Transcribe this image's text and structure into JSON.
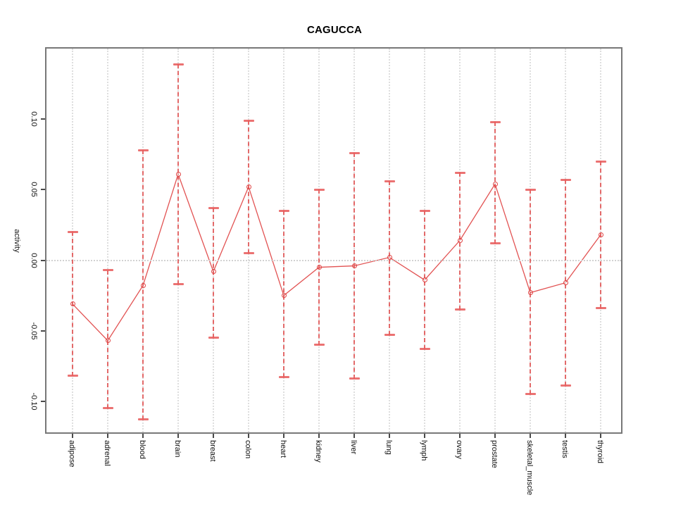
{
  "title": "CAGUCCA",
  "chart_data": {
    "type": "line",
    "title": "CAGUCCA",
    "xlabel": "",
    "ylabel": "activity",
    "categories": [
      "adipose",
      "adrenal",
      "blood",
      "brain",
      "breast",
      "colon",
      "heart",
      "kidney",
      "liver",
      "lung",
      "lymph",
      "ovary",
      "prostate",
      "skeletal_muscle",
      "testis",
      "thyroid"
    ],
    "series": [
      {
        "name": "activity",
        "values": [
          -0.031,
          -0.057,
          -0.018,
          0.061,
          -0.008,
          0.052,
          -0.025,
          -0.005,
          -0.004,
          0.002,
          -0.014,
          0.014,
          0.054,
          -0.023,
          -0.016,
          0.018
        ],
        "error_upper": [
          0.02,
          -0.007,
          0.078,
          0.139,
          0.037,
          0.099,
          0.035,
          0.05,
          0.076,
          0.056,
          0.035,
          0.062,
          0.098,
          0.05,
          0.057,
          0.07
        ],
        "error_lower": [
          -0.082,
          -0.105,
          -0.113,
          -0.017,
          -0.055,
          0.005,
          -0.083,
          -0.06,
          -0.084,
          -0.053,
          -0.063,
          -0.035,
          0.012,
          -0.095,
          -0.089,
          -0.034
        ]
      }
    ],
    "ylim": [
      -0.122,
      0.15
    ],
    "yticks": [
      0.1,
      0.05,
      0.0,
      -0.05,
      -0.1
    ],
    "ytick_labels": [
      "0.10",
      "0.05",
      "0.00",
      "-0.05",
      "-0.10"
    ],
    "grid": "vertical dotted gridlines at each category; dotted horizontal line at y=0",
    "legend": "none",
    "colors": {
      "line": "#e25252",
      "point": "#e04545",
      "error_bar": "#e05c5c",
      "grid": "#dedede",
      "box": "#787878",
      "text": "#111111"
    }
  }
}
